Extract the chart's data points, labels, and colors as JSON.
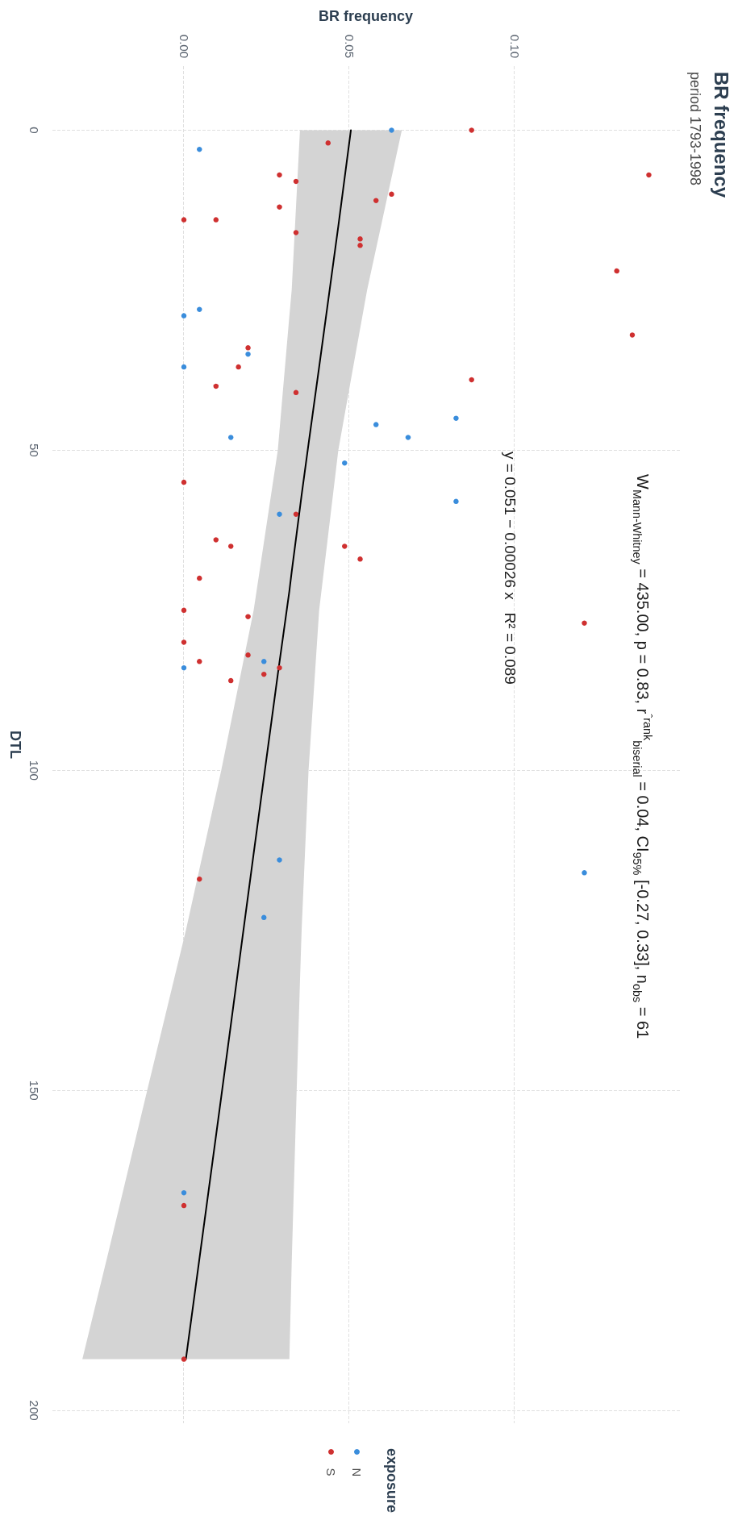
{
  "chart_data": {
    "type": "scatter",
    "title": "BR frequency",
    "subtitle": "period 1793-1998",
    "xlabel": "BR frequency",
    "ylabel": "DTL",
    "legend_title": "exposure",
    "annotations": [
      "y = 0.051 − 0.00026 x   R² = 0.089",
      "W$_{Mann-Whitney}$ = 435.00, p = 0.83, r$^{ˆrank}$$_{biserial}$ = 0.04, CI$_{95%}$ [-0.27, 0.33], n$_{obs}$ = 61"
    ],
    "xlim": [
      -0.04,
      0.15
    ],
    "xticks": [
      {
        "value": 0,
        "label": "0.00"
      },
      0.05,
      {
        "value": 0.1,
        "label": "0.10"
      }
    ],
    "ylim": [
      202,
      -10
    ],
    "yticks": [
      0,
      50,
      100,
      150,
      200
    ],
    "grid": true,
    "legend": "bottom",
    "marker": "circle",
    "series": [
      {
        "name": "N",
        "color": "#3a8ddc",
        "x": [
          0.0628,
          0.0047,
          0.0047,
          0,
          0.0194,
          0,
          0.0823,
          0.0581,
          0.0142,
          0.0678,
          0.0486,
          0.0823,
          0.0289,
          0.0242,
          0,
          0.0289,
          0.1211,
          0.0242,
          0
        ],
        "values": [
          0,
          3,
          28,
          29,
          35,
          37,
          45,
          46,
          48,
          48,
          52,
          58,
          60,
          83,
          84,
          114,
          116,
          123,
          166
        ]
      },
      {
        "name": "S",
        "color": "#cf3030",
        "x": [
          0.087,
          0.0436,
          0.0289,
          0.1406,
          0.0339,
          0.0628,
          0.0581,
          0.0289,
          0,
          0.0097,
          0.0339,
          0.0533,
          0.0533,
          0.1309,
          0.1356,
          0.0194,
          0.0165,
          0.087,
          0.0097,
          0.0339,
          0,
          0.0339,
          0.0097,
          0.0142,
          0.0486,
          0.0533,
          0.0047,
          0,
          0.0194,
          0.1211,
          0,
          0.0194,
          0.0047,
          0.0289,
          0.0242,
          0.0142,
          0.0047,
          0,
          0
        ],
        "values": [
          0,
          2,
          7,
          7,
          8,
          10,
          11,
          12,
          14,
          14,
          16,
          17,
          18,
          22,
          32,
          34,
          37,
          39,
          40,
          41,
          55,
          60,
          64,
          65,
          65,
          67,
          70,
          75,
          76,
          77,
          80,
          82,
          83,
          84,
          85,
          86,
          117,
          168,
          192
        ]
      },
      {
        "type": "line",
        "color": "#000000",
        "marker": "none",
        "x": [
          -0.0307,
          -0.0227,
          -0.0111,
          0.0006,
          0.0113,
          0.0211,
          0.0284,
          0.0319,
          0.0326,
          0.0341,
          0.0351,
          0.0356,
          0.0377,
          0.0409,
          0.0467,
          0.0505,
          0.0554,
          0.0659
        ],
        "values": [
          null,
          null,
          null,
          192,
          151,
          113,
          85,
          72,
          69,
          63,
          59,
          57,
          49,
          37,
          15,
          0,
          null,
          null
        ],
        "lower": [
          192,
          175,
          150,
          125,
          100,
          75,
          50,
          29,
          25,
          10,
          0,
          0,
          0,
          0,
          0,
          0,
          0,
          0
        ],
        "upper": [
          192,
          192,
          192,
          192,
          192,
          192,
          192,
          192,
          177,
          150,
          133,
          125,
          100,
          75,
          50,
          39,
          25,
          0
        ]
      }
    ]
  }
}
